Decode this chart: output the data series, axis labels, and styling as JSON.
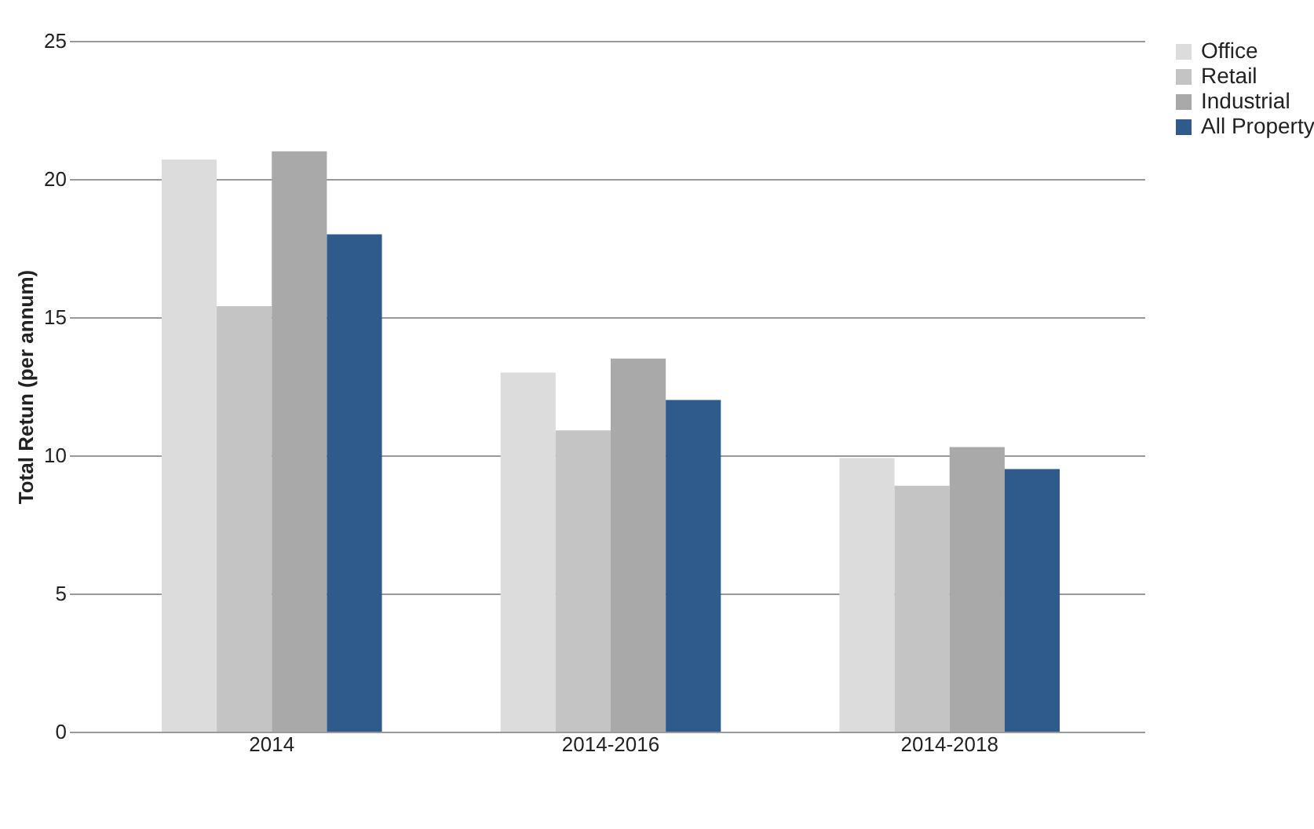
{
  "chart_data": {
    "type": "bar",
    "ylabel": "Total Retun (per annum)",
    "categories": [
      "2014",
      "2014-2016",
      "2014-2018"
    ],
    "series": [
      {
        "name": "Office",
        "color": "#dcdcdc",
        "values": [
          20.7,
          13.0,
          9.9
        ]
      },
      {
        "name": "Retail",
        "color": "#c4c4c4",
        "values": [
          15.4,
          10.9,
          8.9
        ]
      },
      {
        "name": "Industrial",
        "color": "#a9a9a9",
        "values": [
          21.0,
          13.5,
          10.3
        ]
      },
      {
        "name": "All Property",
        "color": "#2e5a8c",
        "values": [
          18.0,
          12.0,
          9.5
        ]
      }
    ],
    "ylim": [
      0,
      25
    ],
    "yticks": [
      0,
      5,
      10,
      15,
      20,
      25
    ],
    "grid": "y",
    "legend": "right"
  }
}
